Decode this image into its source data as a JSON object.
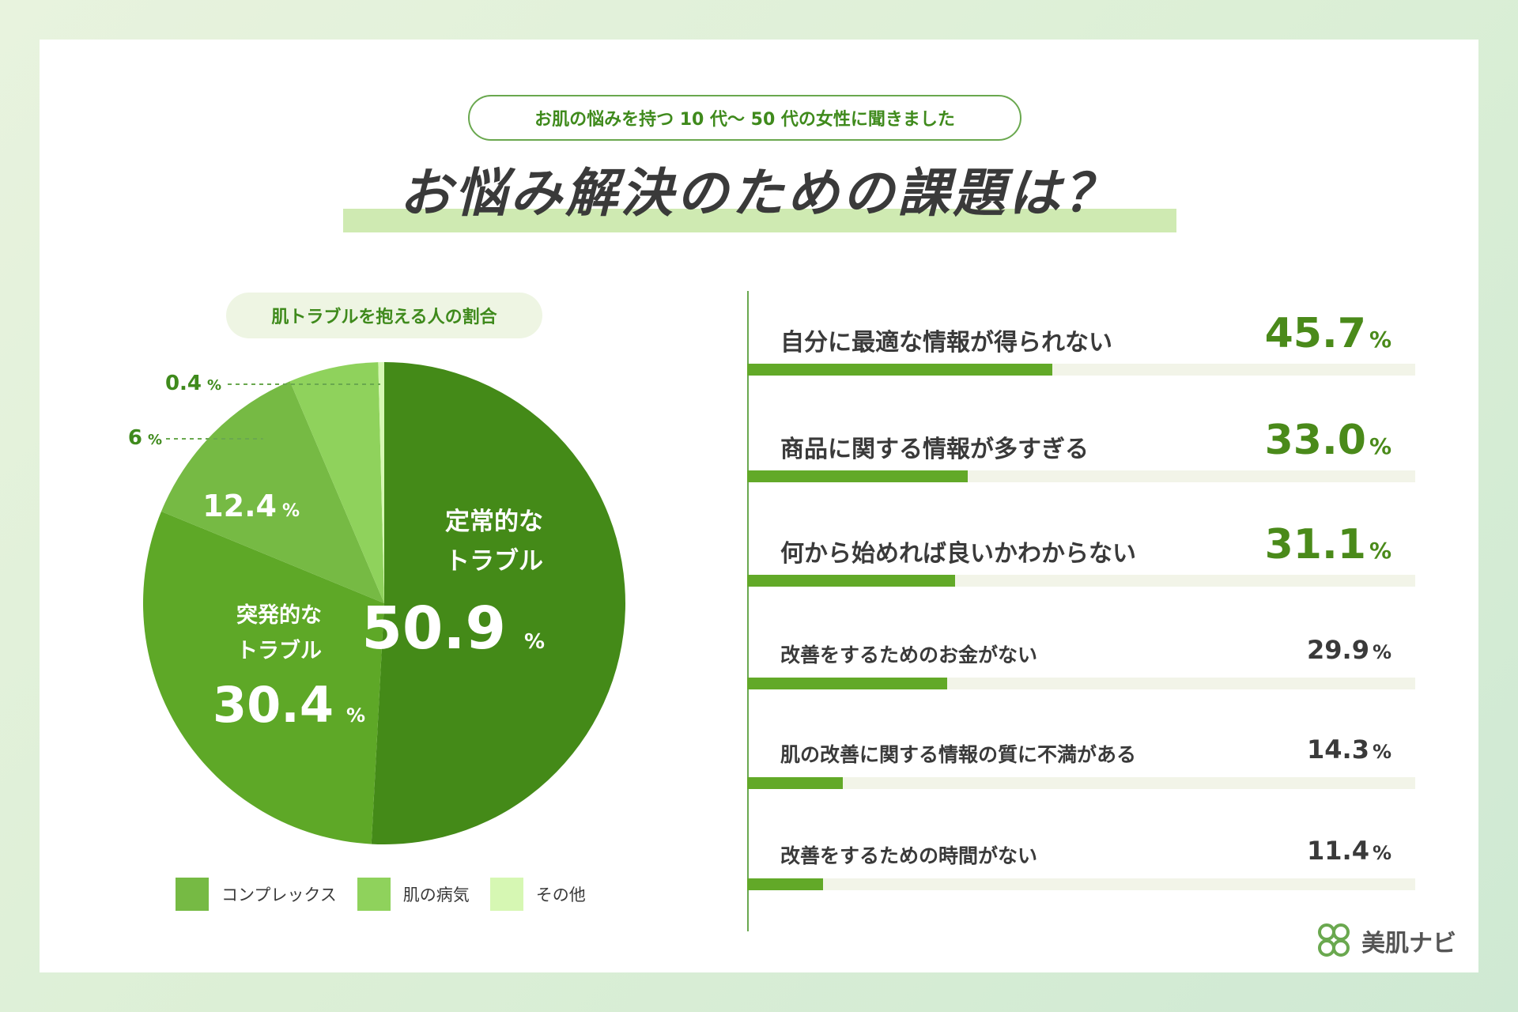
{
  "header": {
    "subtitle": "お肌の悩みを持つ 10 代〜 50 代の女性に聞きました",
    "title": "お悩み解決のための課題は？"
  },
  "pie": {
    "title": "肌トラブルを抱える人の割合",
    "slices": [
      {
        "name": "定常的なトラブル",
        "line1": "定常的な",
        "line2": "トラブル",
        "value_text": "50.9",
        "value": 50.9,
        "color": "#448a18"
      },
      {
        "name": "突発的なトラブル",
        "line1": "突発的な",
        "line2": "トラブル",
        "value_text": "30.4",
        "value": 30.4,
        "color": "#5ea827"
      },
      {
        "name": "コンプレックス",
        "value_text": "12.4",
        "value": 12.4,
        "color": "#76ba44"
      },
      {
        "name": "肌の病気",
        "value_text": "6",
        "value": 6,
        "color": "#8fd25c"
      },
      {
        "name": "その他",
        "value_text": "0.4",
        "value": 0.4,
        "color": "#d6f7b3"
      }
    ],
    "percent_sign": "%"
  },
  "legend": [
    {
      "label": "コンプレックス",
      "color": "#76ba44"
    },
    {
      "label": "肌の病気",
      "color": "#8fd25c"
    },
    {
      "label": "その他",
      "color": "#d6f7b3"
    }
  ],
  "chart_data": [
    {
      "type": "pie",
      "title": "肌トラブルを抱える人の割合",
      "categories": [
        "定常的なトラブル",
        "突発的なトラブル",
        "コンプレックス",
        "肌の病気",
        "その他"
      ],
      "values": [
        50.9,
        30.4,
        12.4,
        6,
        0.4
      ],
      "unit": "%"
    },
    {
      "type": "bar",
      "title": "お悩み解決のための課題は？",
      "categories": [
        "自分に最適な情報が得られない",
        "商品に関する情報が多すぎる",
        "何から始めれば良いかわからない",
        "改善をするためのお金がない",
        "肌の改善に関する情報の質に不満がある",
        "改善をするための時間がない"
      ],
      "values": [
        45.7,
        33.0,
        31.1,
        29.9,
        14.3,
        11.4
      ],
      "unit": "%"
    }
  ],
  "bars": {
    "percent_sign": "%",
    "items": [
      {
        "label": "自分に最適な情報が得られない",
        "value_text": "45.7",
        "value": 45.7
      },
      {
        "label": "商品に関する情報が多すぎる",
        "value_text": "33.0",
        "value": 33.0
      },
      {
        "label": "何から始めれば良いかわからない",
        "value_text": "31.1",
        "value": 31.1
      },
      {
        "label": "改善をするためのお金がない",
        "value_text": "29.9",
        "value": 29.9
      },
      {
        "label": "肌の改善に関する情報の質に不満がある",
        "value_text": "14.3",
        "value": 14.3
      },
      {
        "label": "改善をするための時間がない",
        "value_text": "11.4",
        "value": 11.4
      }
    ]
  },
  "brand": {
    "name": "美肌ナビ",
    "logo_icon": "clover-logo-icon"
  }
}
